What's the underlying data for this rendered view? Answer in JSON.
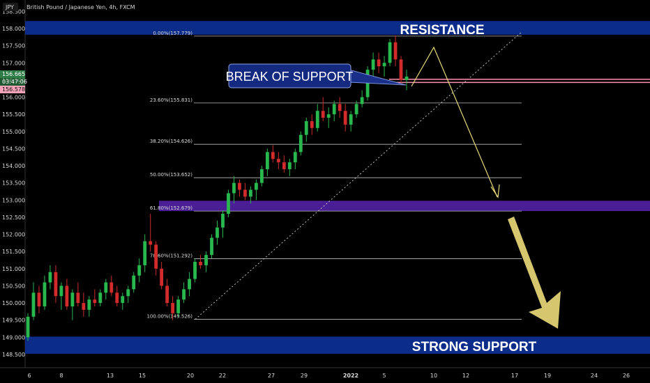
{
  "header": {
    "symbol": "JPY",
    "title": "British Pound / Japanese Yen, 4h, FXCM"
  },
  "price_tags": {
    "last": "156.665",
    "countdown": "03:47:06",
    "bid": "156.578"
  },
  "annotations": {
    "resistance": "RESISTANCE",
    "strong_support": "STRONG SUPPORT",
    "break_of_support": "BREAK OF SUPPORT"
  },
  "colors": {
    "zone_blue": "#0c2c8a",
    "zone_purple": "#4a1f95",
    "up_candle": "#29b84e",
    "down_candle": "#d12b2b",
    "projection": "#e8d877",
    "trendline": "#cfcfcf",
    "fib_line": "#bdbdbd",
    "support_break_line": "#ff8fb0"
  },
  "chart_data": {
    "type": "candlestick",
    "title": "British Pound / Japanese Yen, 4h, FXCM",
    "ylim": [
      148.3,
      158.3
    ],
    "y_ticks": [
      "148.500",
      "149.000",
      "149.500",
      "150.000",
      "150.500",
      "151.000",
      "151.500",
      "152.000",
      "152.500",
      "153.000",
      "153.500",
      "154.000",
      "154.500",
      "155.000",
      "155.500",
      "156.000",
      "156.500",
      "157.000",
      "157.500",
      "158.000",
      "158.500"
    ],
    "x_ticks": [
      "6",
      "8",
      "13",
      "15",
      "20",
      "22",
      "27",
      "29",
      "2022",
      "5",
      "10",
      "12",
      "17",
      "19",
      "24",
      "26"
    ],
    "zones": [
      {
        "label": "RESISTANCE",
        "from": 157.82,
        "to": 158.22
      },
      {
        "label": "",
        "from": 152.68,
        "to": 152.98
      },
      {
        "label": "STRONG SUPPORT",
        "from": 148.52,
        "to": 149.02
      }
    ],
    "fibonacci": [
      {
        "label": "0.00%(157.779)",
        "level": 157.779
      },
      {
        "label": "23.60%(155.831)",
        "level": 155.831
      },
      {
        "label": "38.20%(154.626)",
        "level": 154.626
      },
      {
        "label": "50.00%(153.652)",
        "level": 153.652
      },
      {
        "label": "61.80%(152.679)",
        "level": 152.679
      },
      {
        "label": "78.60%(151.292)",
        "level": 151.292
      },
      {
        "label": "100.00%(149.526)",
        "level": 149.526
      }
    ],
    "candles": [
      [
        149.0,
        149.7,
        148.9,
        149.6
      ],
      [
        149.6,
        150.6,
        149.5,
        150.3
      ],
      [
        150.3,
        150.5,
        149.7,
        149.9
      ],
      [
        149.9,
        150.8,
        149.8,
        150.6
      ],
      [
        150.6,
        151.1,
        150.4,
        150.9
      ],
      [
        150.9,
        151.1,
        150.0,
        150.2
      ],
      [
        150.2,
        150.6,
        149.8,
        150.5
      ],
      [
        150.5,
        150.7,
        149.8,
        149.9
      ],
      [
        149.9,
        150.4,
        149.5,
        150.3
      ],
      [
        150.3,
        150.6,
        149.9,
        150.0
      ],
      [
        150.0,
        150.3,
        149.6,
        149.8
      ],
      [
        149.8,
        150.2,
        149.6,
        150.1
      ],
      [
        150.1,
        150.4,
        149.9,
        150.0
      ],
      [
        150.0,
        150.4,
        149.9,
        150.3
      ],
      [
        150.3,
        150.7,
        150.1,
        150.6
      ],
      [
        150.6,
        150.8,
        150.2,
        150.3
      ],
      [
        150.3,
        150.5,
        149.9,
        150.0
      ],
      [
        150.0,
        150.3,
        149.8,
        150.2
      ],
      [
        150.2,
        150.5,
        150.0,
        150.4
      ],
      [
        150.4,
        150.9,
        150.3,
        150.8
      ],
      [
        150.8,
        151.3,
        150.6,
        151.1
      ],
      [
        151.1,
        152.0,
        150.9,
        151.8
      ],
      [
        151.8,
        152.6,
        151.5,
        151.7
      ],
      [
        151.7,
        151.8,
        150.8,
        151.0
      ],
      [
        151.0,
        151.2,
        150.4,
        150.5
      ],
      [
        150.5,
        150.7,
        149.9,
        150.0
      ],
      [
        150.0,
        150.2,
        149.5,
        149.7
      ],
      [
        149.7,
        150.2,
        149.6,
        150.1
      ],
      [
        150.1,
        150.6,
        150.0,
        150.4
      ],
      [
        150.4,
        150.9,
        150.2,
        150.7
      ],
      [
        150.7,
        151.3,
        150.6,
        151.2
      ],
      [
        151.2,
        151.4,
        151.0,
        151.1
      ],
      [
        151.1,
        151.5,
        150.9,
        151.4
      ],
      [
        151.4,
        152.0,
        151.3,
        151.9
      ],
      [
        151.9,
        152.4,
        151.7,
        152.2
      ],
      [
        152.2,
        152.7,
        151.9,
        152.6
      ],
      [
        152.6,
        153.3,
        152.5,
        153.2
      ],
      [
        153.2,
        153.7,
        152.9,
        153.5
      ],
      [
        153.5,
        153.6,
        153.1,
        153.3
      ],
      [
        153.3,
        153.5,
        153.0,
        153.1
      ],
      [
        153.1,
        153.4,
        152.9,
        153.3
      ],
      [
        153.3,
        153.6,
        153.0,
        153.5
      ],
      [
        153.5,
        154.0,
        153.4,
        153.9
      ],
      [
        153.9,
        154.5,
        153.7,
        154.4
      ],
      [
        154.4,
        154.6,
        154.1,
        154.2
      ],
      [
        154.2,
        154.4,
        153.9,
        154.1
      ],
      [
        154.1,
        154.3,
        153.8,
        153.9
      ],
      [
        153.9,
        154.2,
        153.7,
        154.1
      ],
      [
        154.1,
        154.5,
        153.9,
        154.4
      ],
      [
        154.4,
        155.0,
        154.3,
        154.9
      ],
      [
        154.9,
        155.4,
        154.7,
        155.3
      ],
      [
        155.3,
        155.5,
        154.9,
        155.1
      ],
      [
        155.1,
        155.8,
        155.0,
        155.6
      ],
      [
        155.6,
        156.0,
        155.3,
        155.4
      ],
      [
        155.4,
        155.7,
        155.1,
        155.5
      ],
      [
        155.5,
        155.9,
        155.3,
        155.8
      ],
      [
        155.8,
        156.0,
        155.4,
        155.6
      ],
      [
        155.6,
        155.8,
        155.0,
        155.2
      ],
      [
        155.2,
        155.6,
        155.0,
        155.5
      ],
      [
        155.5,
        155.9,
        155.4,
        155.8
      ],
      [
        155.8,
        156.2,
        155.7,
        156.0
      ],
      [
        156.0,
        156.9,
        155.9,
        156.8
      ],
      [
        156.8,
        157.3,
        156.5,
        157.1
      ],
      [
        157.1,
        157.3,
        156.7,
        156.9
      ],
      [
        156.9,
        157.2,
        156.6,
        157.0
      ],
      [
        157.0,
        157.7,
        156.9,
        157.6
      ],
      [
        157.6,
        157.8,
        156.9,
        157.1
      ],
      [
        157.1,
        157.2,
        156.4,
        156.5
      ],
      [
        156.5,
        156.8,
        156.2,
        156.6
      ]
    ]
  }
}
